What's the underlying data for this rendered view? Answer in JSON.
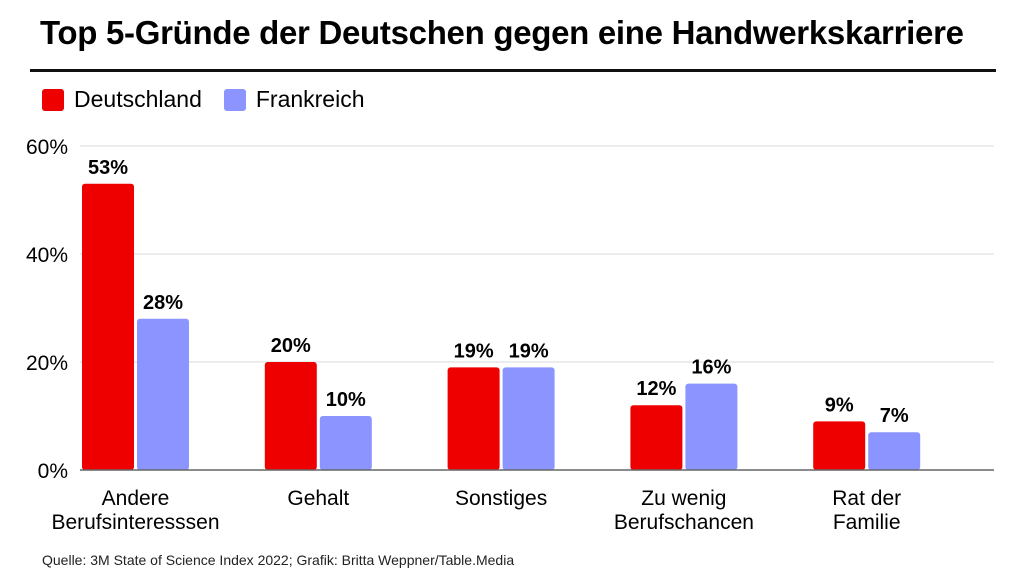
{
  "colors": {
    "deutschland": "#ee0000",
    "frankreich": "#8b94ff",
    "grid": "#d9d9d9",
    "axis": "#666666"
  },
  "chart_data": {
    "type": "bar",
    "title": "Top 5-Gründe der Deutschen gegen eine Handwerkskarriere",
    "categories": [
      [
        "Andere",
        "Berufsinteresssen"
      ],
      [
        "Gehalt"
      ],
      [
        "Sonstiges"
      ],
      [
        "Zu wenig",
        "Berufschancen"
      ],
      [
        "Rat der",
        "Familie"
      ]
    ],
    "series": [
      {
        "name": "Deutschland",
        "values": [
          53,
          20,
          19,
          12,
          9
        ],
        "labels": [
          "53%",
          "20%",
          "19%",
          "12%",
          "9%"
        ]
      },
      {
        "name": "Frankreich",
        "values": [
          28,
          10,
          19,
          16,
          7
        ],
        "labels": [
          "28%",
          "10%",
          "19%",
          "16%",
          "7%"
        ]
      }
    ],
    "ylim": [
      0,
      60
    ],
    "yticks": [
      0,
      20,
      40,
      60
    ],
    "ytick_labels": [
      "0%",
      "20%",
      "40%",
      "60%"
    ],
    "legend": "top-left",
    "grid": true
  },
  "source": "Quelle: 3M State of Science Index 2022; Grafik: Britta Weppner/Table.Media"
}
